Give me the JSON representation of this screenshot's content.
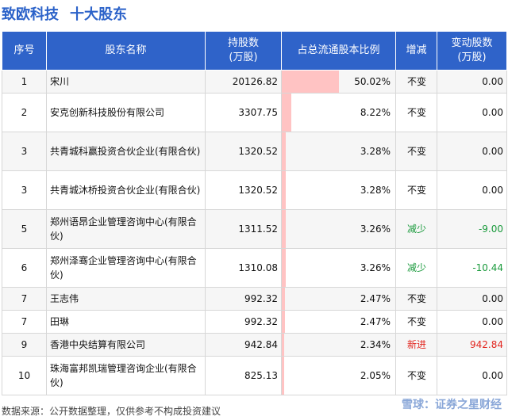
{
  "title": {
    "company": "致欧科技",
    "subtitle": "十大股东"
  },
  "headers": {
    "rank": "序号",
    "name": "股东名称",
    "shares": "持股数\n(万股)",
    "ratio": "占总流通股本比例",
    "change_type": "增减",
    "change": "变动股数\n(万股)"
  },
  "chart_data": {
    "type": "table",
    "title": "致欧科技 十大股东",
    "columns": [
      "序号",
      "股东名称",
      "持股数(万股)",
      "占总流通股本比例",
      "增减",
      "变动股数(万股)"
    ],
    "rows": [
      {
        "rank": "1",
        "name": "宋川",
        "shares": "20126.82",
        "ratio": 50.02,
        "ratio_label": "50.02%",
        "change_type": "不变",
        "change": "0.00"
      },
      {
        "rank": "2",
        "name": "安克创新科技股份有限公司",
        "shares": "3307.75",
        "ratio": 8.22,
        "ratio_label": "8.22%",
        "change_type": "不变",
        "change": "0.00"
      },
      {
        "rank": "3",
        "name": "共青城科赢投资合伙企业(有限合伙)",
        "shares": "1320.52",
        "ratio": 3.28,
        "ratio_label": "3.28%",
        "change_type": "不变",
        "change": "0.00"
      },
      {
        "rank": "3",
        "name": "共青城沐桥投资合伙企业(有限合伙)",
        "shares": "1320.52",
        "ratio": 3.28,
        "ratio_label": "3.28%",
        "change_type": "不变",
        "change": "0.00"
      },
      {
        "rank": "5",
        "name": "郑州语昂企业管理咨询中心(有限合伙)",
        "shares": "1311.52",
        "ratio": 3.26,
        "ratio_label": "3.26%",
        "change_type": "减少",
        "change": "-9.00"
      },
      {
        "rank": "6",
        "name": "郑州泽骞企业管理咨询中心(有限合伙)",
        "shares": "1310.08",
        "ratio": 3.26,
        "ratio_label": "3.26%",
        "change_type": "减少",
        "change": "-10.44"
      },
      {
        "rank": "7",
        "name": "王志伟",
        "shares": "992.32",
        "ratio": 2.47,
        "ratio_label": "2.47%",
        "change_type": "不变",
        "change": "0.00"
      },
      {
        "rank": "7",
        "name": "田琳",
        "shares": "992.32",
        "ratio": 2.47,
        "ratio_label": "2.47%",
        "change_type": "不变",
        "change": "0.00"
      },
      {
        "rank": "9",
        "name": "香港中央结算有限公司",
        "shares": "942.84",
        "ratio": 2.34,
        "ratio_label": "2.34%",
        "change_type": "新进",
        "change": "942.84"
      },
      {
        "rank": "10",
        "name": "珠海富邦凯瑞管理咨询企业(有限合伙)",
        "shares": "825.13",
        "ratio": 2.05,
        "ratio_label": "2.05%",
        "change_type": "不变",
        "change": "0.00"
      }
    ],
    "bar_max": 100,
    "colors": {
      "header_bg": "#2f63c9",
      "bar": "#ffc3c3",
      "decrease": "#1a9a3c",
      "new": "#e2261f"
    }
  },
  "footer": "数据来源：公开数据整理，仅供参考不构成投资建议",
  "brand": "雪球：证券之星财经"
}
